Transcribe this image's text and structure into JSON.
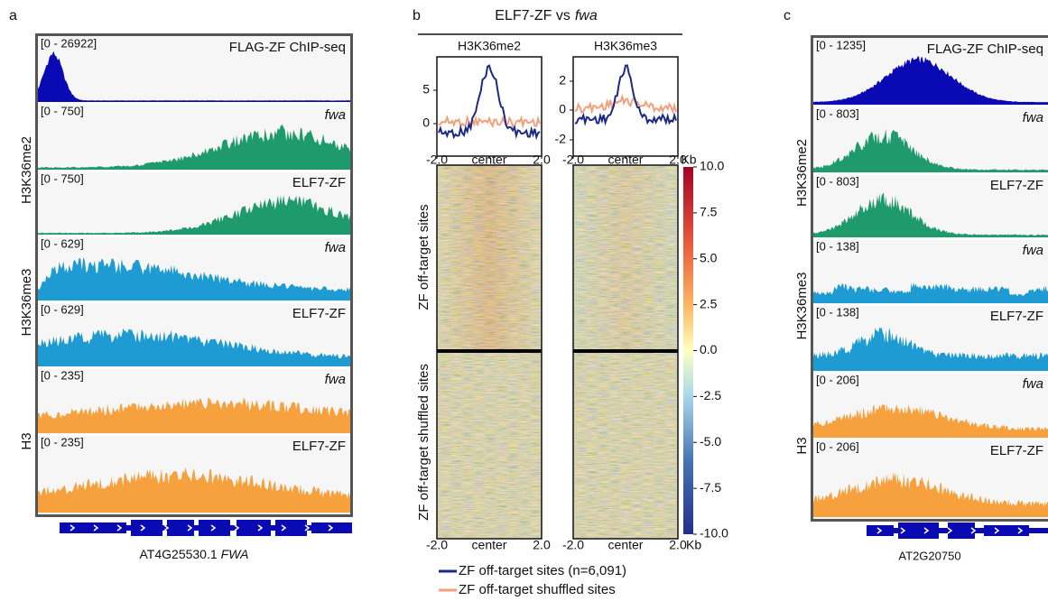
{
  "panel_a": {
    "label": "a",
    "tracks": [
      {
        "range": "[0 - 26922]",
        "name": "FLAG-ZF ChIP-seq",
        "color": "#0a0ab4",
        "italic": false
      },
      {
        "range": "[0 - 750]",
        "name": "fwa",
        "color": "#1f9a6c",
        "italic": true
      },
      {
        "range": "[0 - 750]",
        "name": "ELF7-ZF",
        "color": "#1f9a6c",
        "italic": false
      },
      {
        "range": "[0 - 629]",
        "name": "fwa",
        "color": "#1e9bd2",
        "italic": true
      },
      {
        "range": "[0 - 629]",
        "name": "ELF7-ZF",
        "color": "#1e9bd2",
        "italic": false
      },
      {
        "range": "[0 - 235]",
        "name": "fwa",
        "color": "#f7a03e",
        "italic": true
      },
      {
        "range": "[0 - 235]",
        "name": "ELF7-ZF",
        "color": "#f7a03e",
        "italic": false
      }
    ],
    "groups": [
      "H3K36me2",
      "H3K36me3",
      "H3"
    ],
    "gene": "AT4G25530.1",
    "gene_name": "FWA"
  },
  "panel_b": {
    "label": "b",
    "title": "ELF7-ZF vs",
    "title_italic": "fwa",
    "profiles": [
      {
        "title": "H3K36me2",
        "yticks": [
          "5",
          "0"
        ]
      },
      {
        "title": "H3K36me3",
        "yticks": [
          "2",
          "0",
          "-2"
        ]
      }
    ],
    "xticks": [
      "-2.0",
      "center",
      "2.0"
    ],
    "unit": "Kb",
    "colorbar_ticks": [
      "10.0",
      "7.5",
      "5.0",
      "2.5",
      "0.0",
      "-2.5",
      "-5.0",
      "-7.5",
      "-10.0"
    ],
    "row_groups": [
      "ZF off-target sites",
      "ZF off-target shuffled sites"
    ],
    "legend": [
      {
        "name": "ZF off-target sites (n=6,091)",
        "color": "#1c2a85"
      },
      {
        "name": "ZF off-target shuffled sites",
        "color": "#f4a07e"
      }
    ]
  },
  "panel_c": {
    "label": "c",
    "tracks": [
      {
        "range": "[0 - 1235]",
        "name": "FLAG-ZF ChIP-seq",
        "color": "#0a0ab4",
        "italic": false
      },
      {
        "range": "[0 - 803]",
        "name": "fwa",
        "color": "#1f9a6c",
        "italic": true
      },
      {
        "range": "[0 - 803]",
        "name": "ELF7-ZF",
        "color": "#1f9a6c",
        "italic": false
      },
      {
        "range": "[0 - 138]",
        "name": "fwa",
        "color": "#1e9bd2",
        "italic": true
      },
      {
        "range": "[0 - 138]",
        "name": "ELF7-ZF",
        "color": "#1e9bd2",
        "italic": false
      },
      {
        "range": "[0 - 206]",
        "name": "fwa",
        "color": "#f7a03e",
        "italic": true
      },
      {
        "range": "[0 - 206]",
        "name": "ELF7-ZF",
        "color": "#f7a03e",
        "italic": false
      }
    ],
    "groups": [
      "H3K36me2",
      "H3K36me3",
      "H3"
    ],
    "gene": "AT2G20750"
  }
}
